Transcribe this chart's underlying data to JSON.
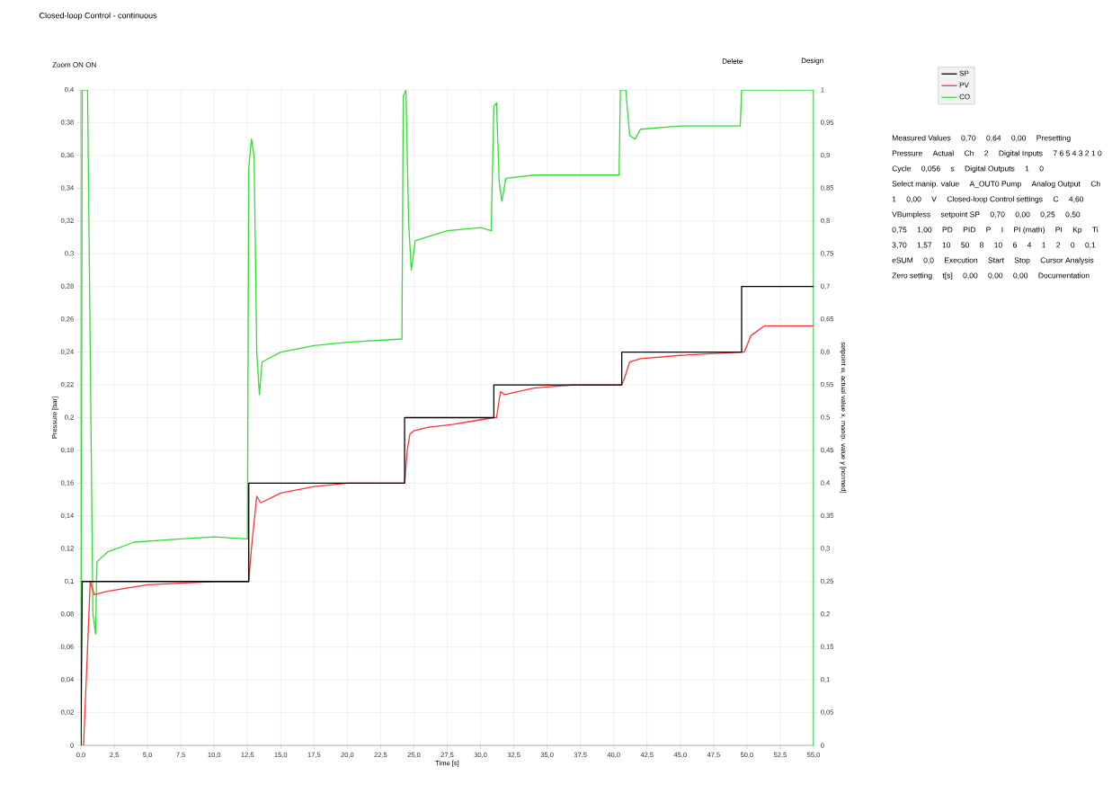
{
  "chart_data": [
    {
      "type": "line",
      "title": "Closed-loop Control - continuous",
      "xlabel": "Time [s]",
      "ylabel": "Pressure [bar]",
      "y2label": "setpoint w, actual value x, manip. value y [normed]",
      "annotations": [
        "Zoom ON",
        "ON",
        "Delete",
        "Design"
      ],
      "grid": true,
      "legend": "top right",
      "xlim": [
        0,
        55
      ],
      "ylim": [
        0,
        0.4
      ],
      "y2lim": [
        0,
        1
      ],
      "xticks": [
        {
          "value": 0,
          "label": "0,0"
        },
        {
          "value": 2.5,
          "label": "2,5"
        },
        {
          "value": 5,
          "label": "5,0"
        },
        {
          "value": 7.5,
          "label": "7,5"
        },
        {
          "value": 10,
          "label": "10,0"
        },
        {
          "value": 12.5,
          "label": "12,5"
        },
        {
          "value": 15,
          "label": "15,0"
        },
        {
          "value": 17.5,
          "label": "17,5"
        },
        {
          "value": 20,
          "label": "20,0"
        },
        {
          "value": 22.5,
          "label": "22,5"
        },
        {
          "value": 25,
          "label": "25,0"
        },
        {
          "value": 27.5,
          "label": "27,5"
        },
        {
          "value": 30,
          "label": "30,0"
        },
        {
          "value": 32.5,
          "label": "32,5"
        },
        {
          "value": 35,
          "label": "35,0"
        },
        {
          "value": 37.5,
          "label": "37,5"
        },
        {
          "value": 40,
          "label": "40,0"
        },
        {
          "value": 42.5,
          "label": "42,5"
        },
        {
          "value": 45,
          "label": "45,0"
        },
        {
          "value": 47.5,
          "label": "47,5"
        },
        {
          "value": 50,
          "label": "50,0"
        },
        {
          "value": 52.5,
          "label": "52,5"
        },
        {
          "value": 55,
          "label": "55,0"
        }
      ],
      "yticks": [
        0,
        {
          "value": 0.02,
          "label": "0,02"
        },
        {
          "value": 0.04,
          "label": "0,04"
        },
        {
          "value": 0.06,
          "label": "0,06"
        },
        {
          "value": 0.08,
          "label": "0,08"
        },
        {
          "value": 0.1,
          "label": "0,1"
        },
        {
          "value": 0.12,
          "label": "0,12"
        },
        {
          "value": 0.14,
          "label": "0,14"
        },
        {
          "value": 0.16,
          "label": "0,16"
        },
        {
          "value": 0.18,
          "label": "0,18"
        },
        {
          "value": 0.2,
          "label": "0,2"
        },
        {
          "value": 0.22,
          "label": "0,22"
        },
        {
          "value": 0.24,
          "label": "0,24"
        },
        {
          "value": 0.26,
          "label": "0,26"
        },
        {
          "value": 0.28,
          "label": "0,28"
        },
        {
          "value": 0.3,
          "label": "0,3"
        },
        {
          "value": 0.32,
          "label": "0,32"
        },
        {
          "value": 0.34,
          "label": "0,34"
        },
        {
          "value": 0.36,
          "label": "0,36"
        },
        {
          "value": 0.38,
          "label": "0,38"
        },
        {
          "value": 0.4,
          "label": "0,4"
        }
      ],
      "y2ticks": [
        0,
        {
          "value": 0.05,
          "label": "0,05"
        },
        {
          "value": 0.1,
          "label": "0,1"
        },
        {
          "value": 0.15,
          "label": "0,15"
        },
        {
          "value": 0.2,
          "label": "0,2"
        },
        {
          "value": 0.25,
          "label": "0,25"
        },
        {
          "value": 0.3,
          "label": "0,3"
        },
        {
          "value": 0.35,
          "label": "0,35"
        },
        {
          "value": 0.4,
          "label": "0,4"
        },
        {
          "value": 0.45,
          "label": "0,45"
        },
        {
          "value": 0.5,
          "label": "0,5"
        },
        {
          "value": 0.55,
          "label": "0,55"
        },
        {
          "value": 0.6,
          "label": "0,6"
        },
        {
          "value": 0.65,
          "label": "0,65"
        },
        {
          "value": 0.7,
          "label": "0,7"
        },
        {
          "value": 0.75,
          "label": "0,75"
        },
        {
          "value": 0.8,
          "label": "0,8"
        },
        {
          "value": 0.85,
          "label": "0,85"
        },
        {
          "value": 0.9,
          "label": "0,9"
        },
        {
          "value": 0.95,
          "label": "0,95"
        },
        1
      ],
      "series": [
        {
          "name": "SP",
          "color": "#000000",
          "axis": "y2",
          "x": [
            0,
            0.1,
            12.6,
            12.6,
            24.3,
            24.3,
            31,
            31,
            40.6,
            40.6,
            49.6,
            49.6,
            55
          ],
          "values": [
            0,
            0.25,
            0.25,
            0.4,
            0.4,
            0.5,
            0.5,
            0.55,
            0.55,
            0.6,
            0.6,
            0.7,
            0.7
          ]
        },
        {
          "name": "PV",
          "color": "#ff3333",
          "axis": "y2",
          "x": [
            0.2,
            0.5,
            0.7,
            1.0,
            2,
            5,
            10,
            12.6,
            12.8,
            13.2,
            13.5,
            15,
            17.5,
            20,
            24.3,
            24.5,
            24.7,
            25,
            26,
            28,
            31,
            31.2,
            31.5,
            31.8,
            34,
            37,
            40.6,
            40.8,
            41.2,
            42,
            45,
            49.6,
            49.8,
            50.3,
            51.3,
            55
          ],
          "values": [
            0,
            0.15,
            0.25,
            0.23,
            0.235,
            0.245,
            0.25,
            0.25,
            0.3,
            0.38,
            0.37,
            0.385,
            0.395,
            0.4,
            0.4,
            0.45,
            0.475,
            0.48,
            0.485,
            0.49,
            0.5,
            0.5,
            0.54,
            0.535,
            0.545,
            0.55,
            0.55,
            0.56,
            0.585,
            0.59,
            0.595,
            0.6,
            0.6,
            0.625,
            0.64,
            0.64
          ]
        },
        {
          "name": "CO",
          "color": "#33dd33",
          "axis": "y2",
          "x": [
            0,
            0.1,
            0.5,
            0.6,
            0.9,
            1.1,
            1.2,
            2,
            4,
            7.5,
            10,
            12.5,
            12.6,
            12.8,
            13.0,
            13.2,
            13.4,
            13.6,
            15,
            17.5,
            20,
            24.1,
            24.2,
            24.4,
            24.6,
            24.8,
            25.1,
            27.5,
            30,
            30.8,
            31.0,
            31.2,
            31.4,
            31.6,
            31.9,
            34,
            37.5,
            40.4,
            40.5,
            40.9,
            41.2,
            41.6,
            42,
            45,
            49.5,
            49.6,
            55,
            55
          ],
          "values": [
            0,
            1,
            1,
            0.8,
            0.2,
            0.17,
            0.28,
            0.295,
            0.31,
            0.315,
            0.318,
            0.315,
            0.88,
            0.925,
            0.9,
            0.6,
            0.535,
            0.585,
            0.6,
            0.61,
            0.615,
            0.62,
            0.99,
            1.0,
            0.8,
            0.725,
            0.77,
            0.785,
            0.79,
            0.785,
            0.975,
            0.98,
            0.86,
            0.83,
            0.865,
            0.87,
            0.87,
            0.87,
            1.0,
            1.0,
            0.93,
            0.925,
            0.94,
            0.945,
            0.945,
            1.0,
            1.0,
            0
          ]
        }
      ]
    },
    {
      "type": "other",
      "annotations": [
        "Measured Values",
        "0,70",
        "0,64",
        "0,00",
        "Presetting",
        "Pressure",
        "Actual",
        "Ch",
        "2",
        "Digital Inputs",
        "7 6 5 4 3 2 1 0",
        "Cycle",
        "0,056",
        "s",
        "Digital Outputs",
        "1",
        "0",
        "Select manip. value",
        "A_OUT0 Pump",
        "Analog Output",
        "Ch",
        "1",
        "0,00",
        "V",
        "Closed-loop Control settings",
        "C",
        "4,60",
        "VBumpless",
        "setpoint SP",
        "0,70",
        "0,00",
        "0,25",
        "0,50",
        "0,75",
        "1,00",
        "PD",
        "PID",
        "P",
        "I",
        "PI (math)",
        "PI",
        "Kp",
        "Ti",
        "3,70",
        "1,57",
        "10",
        "50",
        "8",
        "10",
        "6",
        "4",
        "1",
        "2",
        "0",
        "0,1",
        "eSUM",
        "0,0",
        "Execution",
        "Start",
        "Stop",
        "Cursor Analysis",
        "Zero setting",
        "t[s]",
        "0,00",
        "0,00",
        "0,00",
        "Documentation"
      ]
    }
  ]
}
